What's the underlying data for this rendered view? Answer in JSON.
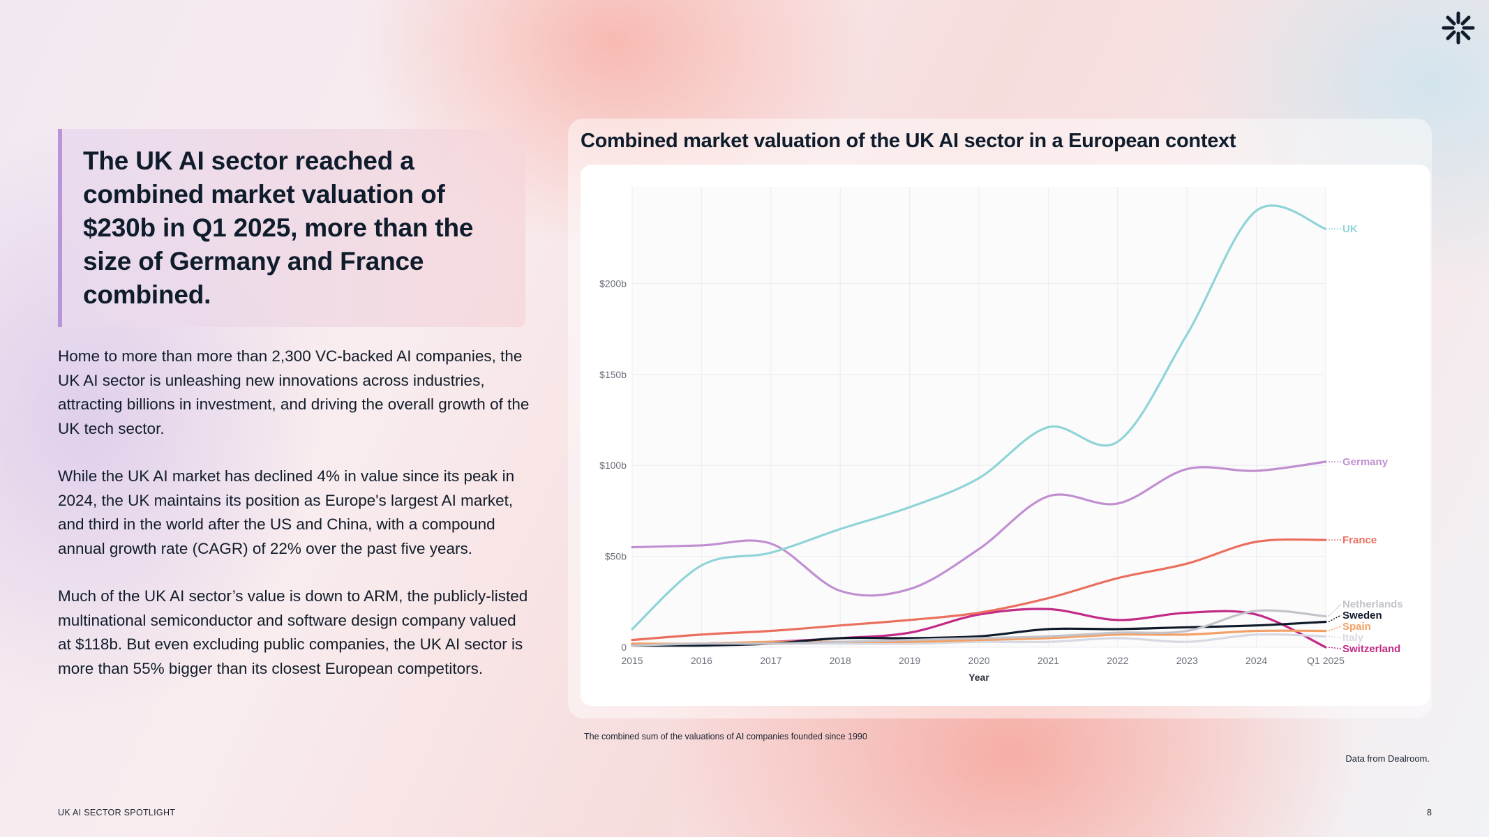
{
  "headline": "The UK AI sector reached a combined market valuation of $230b in Q1 2025, more than the size of Germany and France combined.",
  "paragraphs": [
    "Home to more than more than 2,300 VC-backed AI companies, the UK AI sector is unleashing new innovations across industries, attracting billions in investment, and driving the overall growth of the UK tech sector.",
    "While the UK AI market has declined 4% in value since its peak in 2024, the UK maintains its position as Europe's largest AI market, and third in the world after the US and China, with a compound annual growth rate (CAGR) of 22% over the past five years.",
    "Much of the UK AI sector’s value is down to ARM, the publicly-listed multinational semiconductor and software design company valued at $118b. But even excluding public companies, the UK AI sector is more than 55% bigger than its closest European competitors."
  ],
  "footnote": "The combined sum of the valuations of AI companies founded since 1990",
  "source": "Data from Dealroom.",
  "footer": {
    "left": "UK AI SECTOR SPOTLIGHT",
    "page": "8"
  },
  "logo": "asterisk-logo",
  "chart_data": {
    "type": "line",
    "title": "Combined market valuation of the UK AI sector in a European context",
    "xlabel": "Year",
    "ylabel": "",
    "categories": [
      "2015",
      "2016",
      "2017",
      "2018",
      "2019",
      "2020",
      "2021",
      "2022",
      "2023",
      "2024",
      "Q1  2025"
    ],
    "ylim": [
      0,
      250
    ],
    "yticks": [
      0,
      50,
      100,
      150,
      200
    ],
    "ytick_labels": [
      "0",
      "$50b",
      "$100b",
      "$150b",
      "$200b"
    ],
    "grid": true,
    "series": [
      {
        "name": "UK",
        "color": "#8fd4d6",
        "values": [
          10,
          45,
          52,
          65,
          77,
          93,
          121,
          113,
          172,
          240,
          230
        ]
      },
      {
        "name": "Germany",
        "color": "#c08fd0",
        "values": [
          55,
          56,
          57,
          31,
          32,
          54,
          83,
          79,
          98,
          97,
          102
        ]
      },
      {
        "name": "France",
        "color": "#ea6f5e",
        "values": [
          4,
          7,
          9,
          12,
          15,
          19,
          27,
          38,
          46,
          58,
          59
        ]
      },
      {
        "name": "Netherlands",
        "color": "#c3c3c9",
        "values": [
          1,
          2,
          2,
          3,
          4,
          5,
          6,
          8,
          9,
          20,
          17
        ]
      },
      {
        "name": "Sweden",
        "color": "#0e1a2a",
        "values": [
          1,
          1,
          2,
          5,
          5,
          6,
          10,
          10,
          11,
          12,
          14
        ]
      },
      {
        "name": "Spain",
        "color": "#f3a066",
        "values": [
          2,
          2,
          3,
          3,
          3,
          4,
          5,
          7,
          7,
          9,
          9
        ]
      },
      {
        "name": "Italy",
        "color": "#d7d9e2",
        "values": [
          1,
          1,
          2,
          2,
          2,
          3,
          3,
          5,
          3,
          7,
          6
        ]
      },
      {
        "name": "Switzerland",
        "color": "#c22a86",
        "values": [
          1,
          2,
          3,
          5,
          8,
          18,
          21,
          15,
          19,
          18,
          0
        ]
      }
    ]
  }
}
